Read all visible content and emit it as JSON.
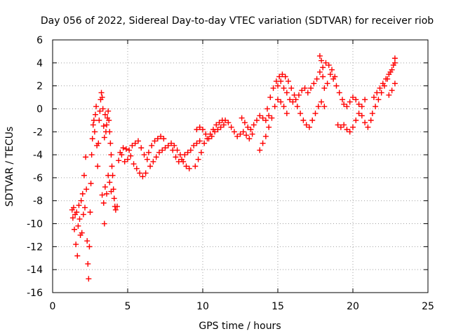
{
  "chart_data": {
    "type": "scatter",
    "title": "Day 056 of 2022, Sidereal Day-to-day VTEC variation (SDTVAR) for receiver riob",
    "xlabel": "GPS time / hours",
    "ylabel": "SDTVAR / TECUs",
    "xlim": [
      0,
      25
    ],
    "ylim": [
      -16,
      6
    ],
    "xticks": [
      "0",
      "5",
      "10",
      "15",
      "20",
      "25"
    ],
    "yticks": [
      "6",
      "4",
      "2",
      "0",
      "-2",
      "-4",
      "-6",
      "-8",
      "-10",
      "-12",
      "-14",
      "-16"
    ],
    "grid": true,
    "marker": "+",
    "color": "#ff0000",
    "series": [
      {
        "points": [
          [
            1.3,
            -8.8
          ],
          [
            1.35,
            -9.5
          ],
          [
            1.4,
            -8.6
          ],
          [
            1.45,
            -10.5
          ],
          [
            1.5,
            -9.2
          ],
          [
            1.55,
            -11.8
          ],
          [
            1.6,
            -9.0
          ],
          [
            1.65,
            -12.8
          ],
          [
            1.7,
            -10.2
          ],
          [
            1.75,
            -8.4
          ],
          [
            1.8,
            -9.6
          ],
          [
            1.85,
            -11.0
          ],
          [
            1.9,
            -8.0
          ],
          [
            1.95,
            -10.8
          ],
          [
            2.0,
            -7.4
          ],
          [
            2.05,
            -9.2
          ],
          [
            2.1,
            -5.8
          ],
          [
            2.15,
            -8.6
          ],
          [
            2.2,
            -4.2
          ],
          [
            2.25,
            -7.0
          ],
          [
            2.3,
            -11.5
          ],
          [
            2.35,
            -13.5
          ],
          [
            2.4,
            -14.8
          ],
          [
            2.45,
            -12.0
          ],
          [
            2.5,
            -9.0
          ],
          [
            2.55,
            -6.5
          ],
          [
            2.6,
            -4.0
          ],
          [
            2.65,
            -2.6
          ],
          [
            2.7,
            -1.4
          ],
          [
            2.75,
            -1.0
          ],
          [
            2.8,
            -2.0
          ],
          [
            2.85,
            -0.5
          ],
          [
            2.9,
            0.2
          ],
          [
            2.95,
            -3.2
          ],
          [
            3.0,
            -5.0
          ],
          [
            3.05,
            -3.0
          ],
          [
            3.1,
            -1.0
          ],
          [
            3.15,
            -0.2
          ],
          [
            3.2,
            0.8
          ],
          [
            3.25,
            1.4
          ],
          [
            3.3,
            1.0
          ],
          [
            3.35,
            0.0
          ],
          [
            3.4,
            -1.5
          ],
          [
            3.45,
            -2.5
          ],
          [
            3.5,
            -0.5
          ],
          [
            3.55,
            -2.0
          ],
          [
            3.6,
            -1.4
          ],
          [
            3.65,
            -0.8
          ],
          [
            3.7,
            -0.2
          ],
          [
            3.75,
            -1.0
          ],
          [
            3.8,
            -2.0
          ],
          [
            3.85,
            -3.0
          ],
          [
            3.9,
            -4.0
          ],
          [
            3.95,
            -5.0
          ],
          [
            4.0,
            -5.8
          ],
          [
            4.05,
            -7.0
          ],
          [
            4.1,
            -7.8
          ],
          [
            4.15,
            -8.5
          ],
          [
            4.2,
            -8.8
          ],
          [
            4.3,
            -8.5
          ],
          [
            3.3,
            -7.5
          ],
          [
            3.4,
            -8.2
          ],
          [
            3.5,
            -6.8
          ],
          [
            3.6,
            -7.4
          ],
          [
            3.7,
            -5.8
          ],
          [
            3.8,
            -6.4
          ],
          [
            3.9,
            -7.2
          ],
          [
            3.45,
            -10.0
          ],
          [
            4.4,
            -4.5
          ],
          [
            4.6,
            -4.0
          ],
          [
            4.8,
            -4.6
          ],
          [
            5.0,
            -4.4
          ],
          [
            5.2,
            -4.1
          ],
          [
            5.4,
            -4.8
          ],
          [
            5.6,
            -5.2
          ],
          [
            5.8,
            -5.6
          ],
          [
            6.0,
            -5.9
          ],
          [
            6.2,
            -5.6
          ],
          [
            4.5,
            -3.8
          ],
          [
            4.7,
            -3.4
          ],
          [
            4.9,
            -3.5
          ],
          [
            5.1,
            -3.6
          ],
          [
            5.3,
            -3.2
          ],
          [
            5.5,
            -3.0
          ],
          [
            5.7,
            -2.8
          ],
          [
            5.9,
            -3.4
          ],
          [
            6.1,
            -4.0
          ],
          [
            6.3,
            -4.4
          ],
          [
            6.4,
            -3.8
          ],
          [
            6.6,
            -3.2
          ],
          [
            6.8,
            -2.8
          ],
          [
            7.0,
            -2.6
          ],
          [
            7.2,
            -2.4
          ],
          [
            7.4,
            -2.6
          ],
          [
            6.5,
            -5.0
          ],
          [
            6.7,
            -4.6
          ],
          [
            6.9,
            -4.2
          ],
          [
            7.1,
            -3.8
          ],
          [
            7.3,
            -3.6
          ],
          [
            7.5,
            -3.4
          ],
          [
            7.7,
            -3.2
          ],
          [
            7.9,
            -3.0
          ],
          [
            8.1,
            -3.2
          ],
          [
            8.3,
            -3.6
          ],
          [
            8.5,
            -4.0
          ],
          [
            8.7,
            -4.6
          ],
          [
            8.9,
            -5.0
          ],
          [
            9.1,
            -5.2
          ],
          [
            8.0,
            -3.6
          ],
          [
            8.2,
            -4.2
          ],
          [
            8.4,
            -4.6
          ],
          [
            8.6,
            -4.4
          ],
          [
            8.8,
            -4.0
          ],
          [
            9.0,
            -3.8
          ],
          [
            9.2,
            -3.6
          ],
          [
            9.4,
            -3.2
          ],
          [
            9.6,
            -3.0
          ],
          [
            9.8,
            -2.8
          ],
          [
            9.5,
            -5.0
          ],
          [
            9.7,
            -4.4
          ],
          [
            9.9,
            -3.8
          ],
          [
            10.1,
            -3.0
          ],
          [
            10.3,
            -2.6
          ],
          [
            10.5,
            -2.2
          ],
          [
            10.7,
            -1.8
          ],
          [
            10.9,
            -1.4
          ],
          [
            11.1,
            -1.2
          ],
          [
            11.3,
            -1.0
          ],
          [
            9.6,
            -1.8
          ],
          [
            9.8,
            -1.6
          ],
          [
            10.0,
            -1.8
          ],
          [
            10.2,
            -2.2
          ],
          [
            10.4,
            -2.6
          ],
          [
            10.6,
            -2.4
          ],
          [
            10.8,
            -2.0
          ],
          [
            11.0,
            -1.8
          ],
          [
            11.2,
            -1.6
          ],
          [
            11.4,
            -1.4
          ],
          [
            11.5,
            -1.0
          ],
          [
            11.7,
            -1.2
          ],
          [
            11.9,
            -1.6
          ],
          [
            12.1,
            -2.0
          ],
          [
            12.3,
            -2.4
          ],
          [
            12.5,
            -2.2
          ],
          [
            12.7,
            -2.0
          ],
          [
            12.9,
            -2.3
          ],
          [
            13.1,
            -2.6
          ],
          [
            13.3,
            -2.2
          ],
          [
            12.6,
            -0.8
          ],
          [
            12.8,
            -1.2
          ],
          [
            13.0,
            -1.6
          ],
          [
            13.2,
            -1.8
          ],
          [
            13.4,
            -1.4
          ],
          [
            13.6,
            -1.0
          ],
          [
            13.8,
            -0.6
          ],
          [
            14.0,
            -0.8
          ],
          [
            14.2,
            -1.0
          ],
          [
            14.4,
            -0.6
          ],
          [
            13.8,
            -3.6
          ],
          [
            14.0,
            -3.0
          ],
          [
            14.2,
            -2.4
          ],
          [
            14.4,
            -1.6
          ],
          [
            14.6,
            -0.8
          ],
          [
            14.8,
            0.2
          ],
          [
            15.0,
            0.8
          ],
          [
            15.2,
            0.6
          ],
          [
            15.4,
            0.2
          ],
          [
            15.6,
            -0.4
          ],
          [
            14.3,
            0.0
          ],
          [
            14.5,
            1.0
          ],
          [
            14.7,
            1.8
          ],
          [
            14.9,
            2.4
          ],
          [
            15.1,
            2.8
          ],
          [
            15.3,
            3.0
          ],
          [
            15.5,
            2.8
          ],
          [
            15.7,
            2.4
          ],
          [
            15.9,
            1.8
          ],
          [
            16.1,
            1.2
          ],
          [
            15.0,
            2.0
          ],
          [
            15.2,
            2.4
          ],
          [
            15.4,
            1.8
          ],
          [
            15.6,
            1.4
          ],
          [
            15.8,
            0.8
          ],
          [
            16.0,
            0.6
          ],
          [
            16.2,
            0.8
          ],
          [
            16.4,
            1.2
          ],
          [
            16.6,
            1.6
          ],
          [
            16.8,
            1.8
          ],
          [
            16.3,
            0.2
          ],
          [
            16.5,
            -0.4
          ],
          [
            16.7,
            -1.0
          ],
          [
            16.9,
            -1.4
          ],
          [
            17.1,
            -1.6
          ],
          [
            17.3,
            -1.0
          ],
          [
            17.5,
            -0.4
          ],
          [
            17.7,
            0.2
          ],
          [
            17.9,
            0.6
          ],
          [
            18.1,
            0.2
          ],
          [
            17.0,
            1.4
          ],
          [
            17.2,
            1.8
          ],
          [
            17.4,
            2.2
          ],
          [
            17.6,
            2.6
          ],
          [
            17.8,
            3.2
          ],
          [
            18.0,
            3.6
          ],
          [
            18.2,
            4.0
          ],
          [
            18.4,
            3.8
          ],
          [
            18.6,
            3.4
          ],
          [
            18.8,
            2.8
          ],
          [
            17.8,
            4.6
          ],
          [
            17.9,
            4.2
          ],
          [
            18.0,
            2.8
          ],
          [
            18.1,
            1.8
          ],
          [
            18.3,
            2.2
          ],
          [
            18.5,
            3.0
          ],
          [
            18.7,
            2.6
          ],
          [
            18.9,
            2.0
          ],
          [
            19.1,
            1.4
          ],
          [
            19.3,
            0.8
          ],
          [
            19.0,
            -1.4
          ],
          [
            19.2,
            -1.6
          ],
          [
            19.4,
            -1.4
          ],
          [
            19.6,
            -1.8
          ],
          [
            19.8,
            -2.0
          ],
          [
            20.0,
            -1.6
          ],
          [
            20.2,
            -1.0
          ],
          [
            20.4,
            -0.4
          ],
          [
            20.6,
            0.2
          ],
          [
            20.8,
            0.8
          ],
          [
            19.4,
            0.4
          ],
          [
            19.6,
            0.2
          ],
          [
            19.8,
            0.6
          ],
          [
            20.0,
            1.0
          ],
          [
            20.2,
            0.8
          ],
          [
            20.4,
            0.4
          ],
          [
            20.6,
            -0.6
          ],
          [
            20.8,
            -1.2
          ],
          [
            21.0,
            -1.6
          ],
          [
            21.2,
            -1.0
          ],
          [
            21.3,
            -0.4
          ],
          [
            21.5,
            0.2
          ],
          [
            21.7,
            0.8
          ],
          [
            21.9,
            1.4
          ],
          [
            22.1,
            2.0
          ],
          [
            22.3,
            2.6
          ],
          [
            22.5,
            3.2
          ],
          [
            22.7,
            3.8
          ],
          [
            22.8,
            4.4
          ],
          [
            22.8,
            4.0
          ],
          [
            21.4,
            1.0
          ],
          [
            21.6,
            1.4
          ],
          [
            21.8,
            1.8
          ],
          [
            22.0,
            2.2
          ],
          [
            22.2,
            2.6
          ],
          [
            22.4,
            3.0
          ],
          [
            22.6,
            3.4
          ],
          [
            22.4,
            1.2
          ],
          [
            22.6,
            1.6
          ],
          [
            22.8,
            2.2
          ]
        ]
      }
    ]
  }
}
